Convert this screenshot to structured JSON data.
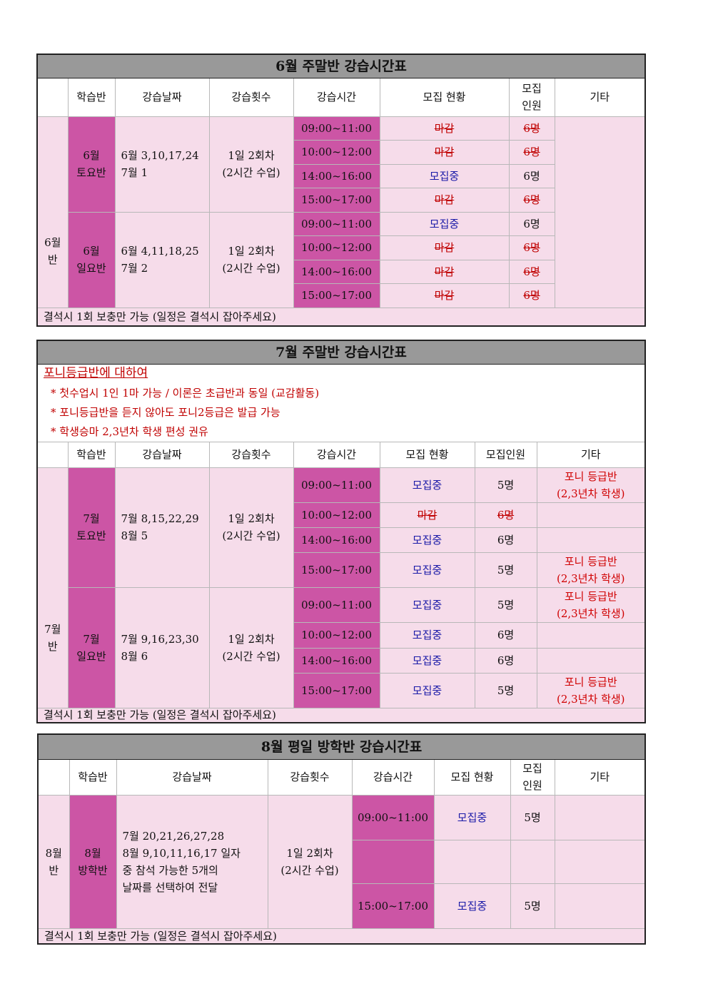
{
  "june": {
    "title": "6월 주말반 강습시간표",
    "headers": [
      "학습반",
      "강습날짜",
      "강습횟수",
      "강습시간",
      "모집 현황",
      "모집\n인원",
      "기타"
    ],
    "group_label": "6월\n반",
    "classes": [
      {
        "name": "6월\n토요반",
        "dates": "6월 3,10,17,24\n7월 1",
        "count": "1일 2회차\n(2시간 수업)",
        "slots": [
          {
            "time": "09:00~11:00",
            "status": "마감",
            "people": "6명"
          },
          {
            "time": "10:00~12:00",
            "status": "마감",
            "people": "6명"
          },
          {
            "time": "14:00~16:00",
            "status": "모집중",
            "people": "6명"
          },
          {
            "time": "15:00~17:00",
            "status": "마감",
            "people": "6명"
          }
        ]
      },
      {
        "name": "6월\n일요반",
        "dates": "6월 4,11,18,25\n7월 2",
        "count": "1일 2회차\n(2시간 수업)",
        "slots": [
          {
            "time": "09:00~11:00",
            "status": "모집중",
            "people": "6명"
          },
          {
            "time": "10:00~12:00",
            "status": "마감",
            "people": "6명"
          },
          {
            "time": "14:00~16:00",
            "status": "마감",
            "people": "6명"
          },
          {
            "time": "15:00~17:00",
            "status": "마감",
            "people": "6명"
          }
        ]
      }
    ],
    "note": "결석시 1회 보충만 가능 (일정은 결석시 잡아주세요)"
  },
  "july": {
    "title": "7월 주말반 강습시간표",
    "notice_title": "포니등급반에 대하여",
    "notice_lines": [
      "* 첫수업시 1인 1마 가능 / 이론은 초급반과 동일 (교감활동)",
      "* 포니등급반을 듣지 않아도 포니2등급은 발급 가능",
      "* 학생승마 2,3년차 학생 편성 권유"
    ],
    "headers": [
      "학습반",
      "강습날짜",
      "강습횟수",
      "강습시간",
      "모집 현황",
      "모집인원",
      "기타"
    ],
    "group_label": "7월\n반",
    "classes": [
      {
        "name": "7월\n토요반",
        "dates": "7월 8,15,22,29\n8월 5",
        "count": "1일 2회차\n(2시간 수업)",
        "slots": [
          {
            "time": "09:00~11:00",
            "status": "모집중",
            "people": "5명",
            "etc": "포니 등급반\n(2,3년차 학생)"
          },
          {
            "time": "10:00~12:00",
            "status": "마감",
            "people": "6명",
            "etc": ""
          },
          {
            "time": "14:00~16:00",
            "status": "모집중",
            "people": "6명",
            "etc": ""
          },
          {
            "time": "15:00~17:00",
            "status": "모집중",
            "people": "5명",
            "etc": "포니 등급반\n(2,3년차 학생)"
          }
        ]
      },
      {
        "name": "7월\n일요반",
        "dates": "7월 9,16,23,30\n8월 6",
        "count": "1일 2회차\n(2시간 수업)",
        "slots": [
          {
            "time": "09:00~11:00",
            "status": "모집중",
            "people": "5명",
            "etc": "포니 등급반\n(2,3년차 학생)"
          },
          {
            "time": "10:00~12:00",
            "status": "모집중",
            "people": "6명",
            "etc": ""
          },
          {
            "time": "14:00~16:00",
            "status": "모집중",
            "people": "6명",
            "etc": ""
          },
          {
            "time": "15:00~17:00",
            "status": "모집중",
            "people": "5명",
            "etc": "포니 등급반\n(2,3년차 학생)"
          }
        ]
      }
    ],
    "note": "결석시 1회 보충만 가능 (일정은 결석시 잡아주세요)"
  },
  "august": {
    "title": "8월 평일 방학반 강습시간표",
    "headers": [
      "학습반",
      "강습날짜",
      "강습횟수",
      "강습시간",
      "모집 현황",
      "모집\n인원",
      "기타"
    ],
    "group_label": "8월\n반",
    "class_name": "8월\n방학반",
    "dates": "7월 20,21,26,27,28\n8월 9,10,11,16,17 일자\n중 참석 가능한 5개의\n날짜를 선택하여 전달",
    "count": "1일 2회차\n(2시간 수업)",
    "slots": [
      {
        "time": "09:00~11:00",
        "status": "모집중",
        "people": "5명"
      },
      {
        "time": "",
        "status": "",
        "people": ""
      },
      {
        "time": "15:00~17:00",
        "status": "모집중",
        "people": "5명"
      }
    ],
    "note": "결석시 1회 보충만 가능 (일정은 결석시 잡아주세요)"
  },
  "colors": {
    "header_gray": "#999999",
    "pink": "#f6dcea",
    "magenta": "#cc55a5",
    "closed_red": "#c00000",
    "open_blue": "#1a1aa8"
  }
}
